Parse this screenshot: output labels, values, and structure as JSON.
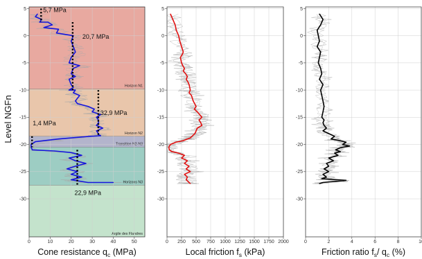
{
  "chart_data": [
    {
      "type": "line",
      "ylabel": "Level NGFn",
      "xlabel_main": "Cone resistance q",
      "xlabel_sub": "c",
      "xlabel_tail": " (MPa)",
      "xlim": [
        0,
        55
      ],
      "ylim": [
        -37,
        5.3
      ],
      "xticks": [
        0,
        10,
        20,
        30,
        40,
        50
      ],
      "yticks": [
        5,
        0,
        -5,
        -10,
        -15,
        -20,
        -25,
        -30
      ],
      "grid": true,
      "zones": [
        {
          "name": "Horizon N1",
          "top": 5.3,
          "bottom": -9.8,
          "color": "#e8a9a0"
        },
        {
          "name": "Horizon N2",
          "top": -9.8,
          "bottom": -18.5,
          "color": "#e9c6ab"
        },
        {
          "name": "Transition N2-N3",
          "top": -18.5,
          "bottom": -20.5,
          "color": "#b3b4cc"
        },
        {
          "name": "Horizons N3",
          "top": -20.5,
          "bottom": -27.5,
          "color": "#9dcdc3"
        },
        {
          "name": "Argile des Flandres",
          "top": -27.5,
          "bottom": -37,
          "color": "#c4e3cc"
        }
      ],
      "averages": [
        {
          "label": "5,7 MPa",
          "value": 5.7,
          "top": 5,
          "bottom": 2.5
        },
        {
          "label": "20,7 MPa",
          "value": 20.7,
          "top": 2.5,
          "bottom": -10
        },
        {
          "label": "32,9 MPa",
          "value": 32.9,
          "top": -10,
          "bottom": -18.5
        },
        {
          "label": "1,4 MPa",
          "value": 1.4,
          "top": -18.5,
          "bottom": -20.5
        },
        {
          "label": "22,9 MPa",
          "value": 22.9,
          "top": -21,
          "bottom": -27.5
        }
      ],
      "series": [
        {
          "color": "#1515dd",
          "x": [
            4,
            3,
            6,
            5,
            9,
            11,
            7,
            14,
            13,
            21,
            20,
            21,
            22,
            20,
            19,
            24,
            21,
            20,
            22,
            19,
            20,
            21,
            19,
            22,
            21,
            24,
            22,
            23,
            28,
            31,
            30,
            34,
            32,
            33,
            33,
            32,
            35,
            32,
            33,
            33,
            34,
            29,
            26,
            14,
            3,
            1,
            1,
            1.5,
            12,
            20,
            25,
            19,
            22,
            27,
            22,
            18,
            23,
            20,
            25,
            20,
            28,
            40
          ],
          "y": [
            4,
            3.5,
            3,
            2.5,
            2.5,
            2,
            1.5,
            1.2,
            0.5,
            0,
            -1,
            -2,
            -3,
            -4,
            -5,
            -5.5,
            -6,
            -7,
            -7.5,
            -8,
            -9,
            -9.5,
            -10,
            -10,
            -10.5,
            -11,
            -12,
            -12.5,
            -13,
            -13.5,
            -14,
            -14.5,
            -15,
            -15.5,
            -16,
            -16.5,
            -17,
            -17.5,
            -18,
            -18.2,
            -18.4,
            -18.5,
            -18.6,
            -19,
            -19.5,
            -20,
            -20.5,
            -21,
            -21.2,
            -21.5,
            -22,
            -22.5,
            -23,
            -23.5,
            -24,
            -24.5,
            -25,
            -25.5,
            -26,
            -26.5,
            -27,
            -27
          ]
        }
      ]
    },
    {
      "type": "line",
      "xlabel_main": "Local friction f",
      "xlabel_sub": "s",
      "xlabel_tail": " (kPa)",
      "xlim": [
        0,
        2000
      ],
      "ylim": [
        -37,
        5.3
      ],
      "xticks": [
        0,
        250,
        500,
        750,
        1000,
        1250,
        1500,
        1750,
        2000
      ],
      "yticks": [
        5,
        0,
        -5,
        -10,
        -15,
        -20,
        -25,
        -30
      ],
      "grid": true,
      "series": [
        {
          "color": "#e01010",
          "x": [
            60,
            100,
            140,
            160,
            200,
            220,
            250,
            280,
            260,
            230,
            250,
            270,
            300,
            280,
            320,
            350,
            330,
            360,
            380,
            400,
            380,
            420,
            450,
            500,
            470,
            520,
            560,
            600,
            550,
            580,
            600,
            520,
            500,
            480,
            450,
            420,
            400,
            350,
            280,
            150,
            60,
            30,
            40,
            80,
            200,
            300,
            250,
            350,
            300,
            380,
            330,
            400,
            300,
            350,
            330,
            380,
            400
          ],
          "y": [
            4,
            3,
            2,
            1,
            0,
            -1,
            -2,
            -3,
            -3.5,
            -4,
            -5,
            -5.5,
            -6,
            -6.5,
            -7,
            -7.5,
            -8,
            -8.5,
            -9,
            -10,
            -10.5,
            -11,
            -12,
            -13,
            -13.5,
            -14,
            -14.5,
            -15,
            -15.5,
            -16,
            -16.5,
            -17,
            -17.5,
            -18,
            -18.3,
            -18.6,
            -18.8,
            -19,
            -19.3,
            -19.6,
            -20,
            -20.5,
            -21,
            -21.3,
            -21.6,
            -22,
            -22.5,
            -23,
            -23.5,
            -24,
            -24.5,
            -25,
            -25.5,
            -26,
            -26.5,
            -27,
            -27.2
          ]
        }
      ]
    },
    {
      "type": "line",
      "xlabel_main": "Friction ratio f",
      "xlabel_sub": "s",
      "xlabel_mid": "/ q",
      "xlabel_sub2": "c",
      "xlabel_tail": " (%)",
      "xlim": [
        0,
        10
      ],
      "ylim": [
        -37,
        5.3
      ],
      "xticks": [
        0,
        2,
        4,
        6,
        8,
        10
      ],
      "yticks": [
        5,
        0,
        -5,
        -10,
        -15,
        -20,
        -25,
        -30
      ],
      "grid": true,
      "series": [
        {
          "color": "#000000",
          "x": [
            1.2,
            1.5,
            1.3,
            1.0,
            1.1,
            1.2,
            1.0,
            1.3,
            1.2,
            1.1,
            1.3,
            1.4,
            1.2,
            1.5,
            1.3,
            1.4,
            1.5,
            1.6,
            1.5,
            1.4,
            1.6,
            1.5,
            1.6,
            1.8,
            1.5,
            2.0,
            2.5,
            2.2,
            3.0,
            3.5,
            3.2,
            3.8,
            3.0,
            2.6,
            3.0,
            2.5,
            2.8,
            2.0,
            2.4,
            1.8,
            2.0,
            1.6,
            2.0,
            1.5,
            1.8,
            1.4,
            3.5,
            1.5,
            1.2
          ],
          "y": [
            4,
            3,
            2,
            1,
            0,
            -1,
            -2,
            -3,
            -4,
            -5,
            -6,
            -7,
            -8,
            -9,
            -10,
            -11,
            -12,
            -13,
            -14,
            -15,
            -15.5,
            -16,
            -16.5,
            -17,
            -17.5,
            -18,
            -18.5,
            -19,
            -19.3,
            -19.6,
            -20,
            -20.3,
            -20.6,
            -21,
            -21.3,
            -21.6,
            -22,
            -22.5,
            -23,
            -23.5,
            -24,
            -24.5,
            -25,
            -25.5,
            -26,
            -26.3,
            -26.6,
            -27,
            -27.2
          ]
        }
      ]
    }
  ]
}
